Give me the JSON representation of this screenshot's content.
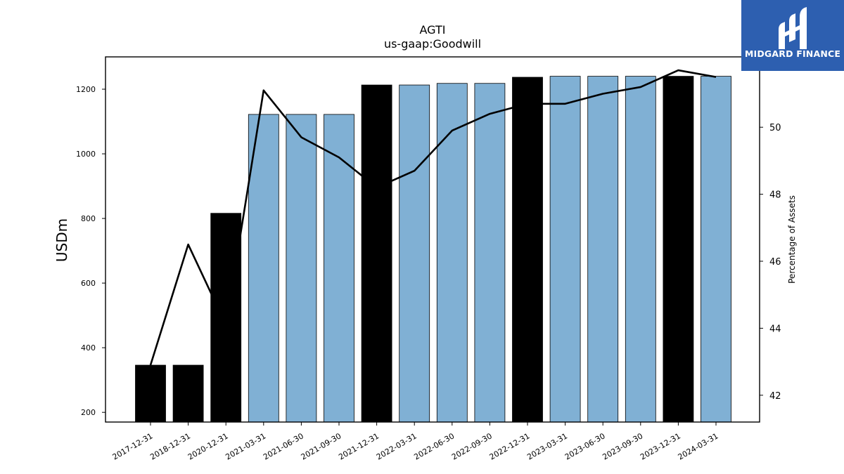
{
  "brand": {
    "name": "MIDGARD FINANCE",
    "bg": "#2d5fb0",
    "logo_icon": "midgard-m-logo-icon"
  },
  "chart_data": {
    "type": "bar",
    "title": "AGTI",
    "subtitle": "us-gaap:Goodwill",
    "ylabel": "USDm",
    "y2label": "Percentage of Assets",
    "ylim": [
      170,
      1300
    ],
    "y2lim": [
      41.2,
      52.1
    ],
    "yticks": [
      200,
      400,
      600,
      800,
      1000,
      1200
    ],
    "y2ticks": [
      42,
      44,
      46,
      48,
      50
    ],
    "categories": [
      "2017-12-31",
      "2018-12-31",
      "2020-12-31",
      "2021-03-31",
      "2021-06-30",
      "2021-09-30",
      "2021-12-31",
      "2022-03-31",
      "2022-06-30",
      "2022-09-30",
      "2022-12-31",
      "2023-03-31",
      "2023-06-30",
      "2023-09-30",
      "2023-12-31",
      "2024-03-31"
    ],
    "series": [
      {
        "type": "bar",
        "values": [
          346,
          346,
          816,
          1122,
          1122,
          1122,
          1213,
          1213,
          1218,
          1218,
          1237,
          1240,
          1240,
          1240,
          1240,
          1240
        ]
      },
      {
        "type": "line",
        "axis": "right",
        "values": [
          42.9,
          46.5,
          44.1,
          51.1,
          49.7,
          49.1,
          48.2,
          48.7,
          49.9,
          50.4,
          50.7,
          50.7,
          51.0,
          51.2,
          51.7,
          51.5
        ]
      }
    ],
    "bar_colors": [
      "#000000",
      "#000000",
      "#000000",
      "#80b0d4",
      "#80b0d4",
      "#80b0d4",
      "#000000",
      "#80b0d4",
      "#80b0d4",
      "#80b0d4",
      "#000000",
      "#80b0d4",
      "#80b0d4",
      "#80b0d4",
      "#000000",
      "#80b0d4"
    ],
    "line_color": "#000000",
    "grid": false,
    "legend": "none"
  }
}
